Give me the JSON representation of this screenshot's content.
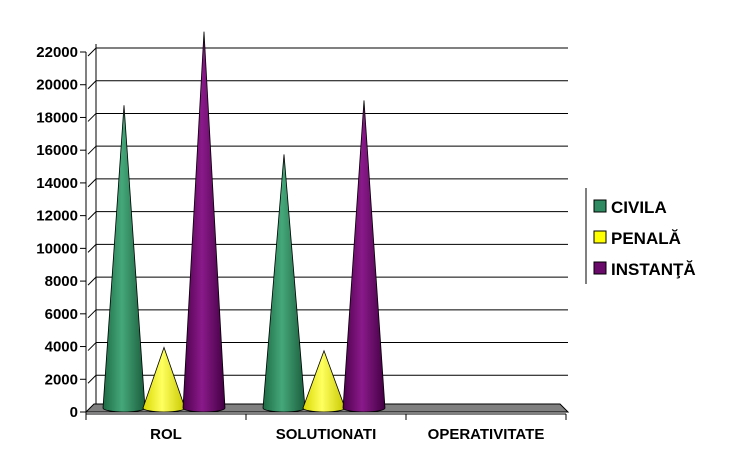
{
  "chart_data": {
    "type": "bar",
    "title": "",
    "xlabel": "",
    "ylabel": "",
    "ylim": [
      0,
      22000
    ],
    "yticks": [
      0,
      2000,
      4000,
      6000,
      8000,
      10000,
      12000,
      14000,
      16000,
      18000,
      20000,
      22000
    ],
    "categories": [
      "ROL",
      "SOLUTIONATI",
      "OPERATIVITATE"
    ],
    "series": [
      {
        "name": "CIVILA",
        "color": "#2e8b62",
        "values": [
          18500,
          15500,
          0
        ]
      },
      {
        "name": "PENALĂ",
        "color": "#ffff00",
        "values": [
          3700,
          3500,
          0
        ]
      },
      {
        "name": "INSTANŢĂ",
        "color": "#6a0a6a",
        "values": [
          23000,
          18800,
          0
        ]
      }
    ],
    "grid": true,
    "legend": "right",
    "bar_shape": "cone"
  }
}
